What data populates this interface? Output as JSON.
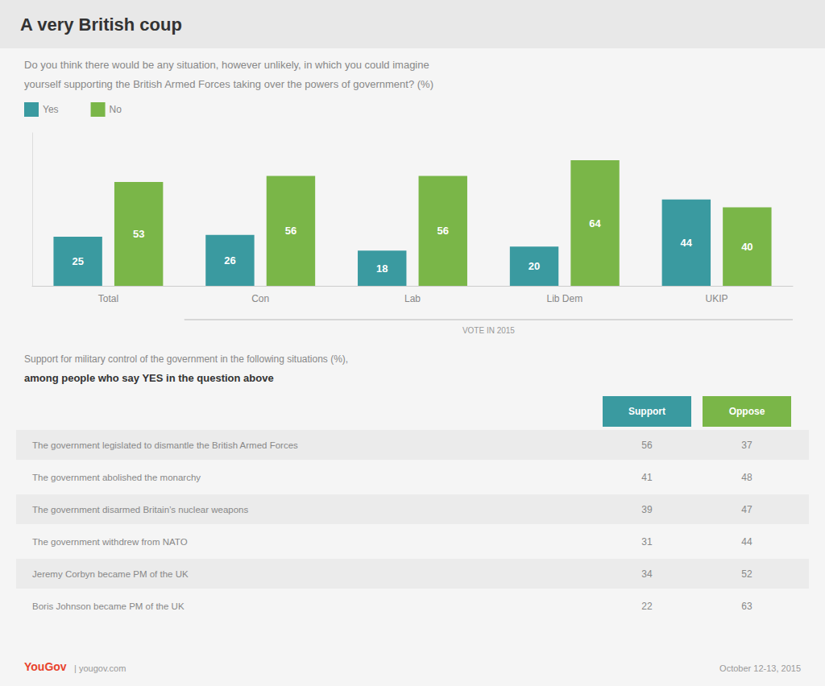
{
  "chart_data": [
    {
      "type": "bar",
      "title": "A very British coup",
      "subtitle": [
        "Do you think there would be any situation, however unlikely, in which you could imagine",
        "yourself supporting the British Armed Forces taking over the powers of government? (%)"
      ],
      "categories": [
        "Total",
        "Con",
        "Lab",
        "Lib Dem",
        "UKIP"
      ],
      "series": [
        {
          "name": "Yes",
          "color": "#3a9aa0",
          "values": [
            25,
            26,
            18,
            20,
            44
          ]
        },
        {
          "name": "No",
          "color": "#7ab648",
          "values": [
            53,
            56,
            56,
            64,
            40
          ]
        }
      ],
      "ylim": [
        0,
        78
      ],
      "grid": false,
      "legend": "top-left",
      "data_labels": true,
      "tick_labels": "x",
      "annotations": [
        "VOTE IN 2015",
        "YouGov",
        "| yougov.com",
        "October 12-13, 2015"
      ]
    },
    {
      "type": "table",
      "title": "Support for military control of the government in the following situations (%),",
      "subtitle": "among people who say YES in the question above",
      "categories": [
        "The government legislated to dismantle the British Armed Forces",
        "The government abolished the monarchy",
        "The government disarmed Britain’s nuclear weapons",
        "The government withdrew from NATO",
        "Jeremy Corbyn became PM of the UK",
        "Boris Johnson became PM of the UK"
      ],
      "series": [
        {
          "name": "Support",
          "color": "#3a9aa0",
          "values": [
            56,
            41,
            39,
            31,
            34,
            22
          ]
        },
        {
          "name": "Oppose",
          "color": "#7ab648",
          "values": [
            37,
            48,
            47,
            44,
            52,
            63
          ]
        }
      ]
    }
  ]
}
